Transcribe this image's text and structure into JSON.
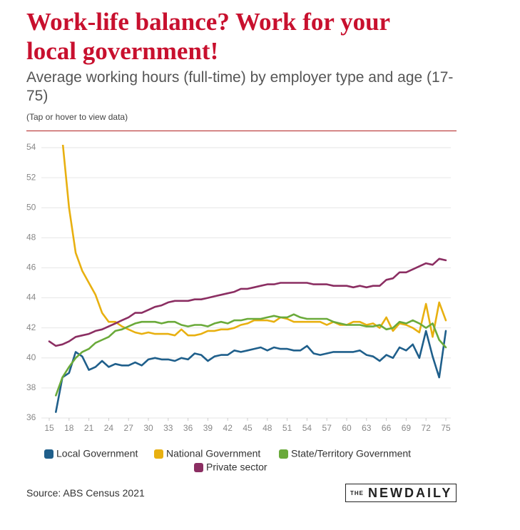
{
  "chart_data": {
    "type": "line",
    "title": "Work-life balance? Work for your local government!",
    "subtitle": "Average working hours (full-time) by employer type and age (17-75)",
    "note": "(Tap or hover to view data)",
    "source": "Source: ABS Census 2021",
    "logo": {
      "prefix": "THE",
      "name": "NEWDAILY"
    },
    "x": [
      15,
      16,
      17,
      18,
      19,
      20,
      21,
      22,
      23,
      24,
      25,
      26,
      27,
      28,
      29,
      30,
      31,
      32,
      33,
      34,
      35,
      36,
      37,
      38,
      39,
      40,
      41,
      42,
      43,
      44,
      45,
      46,
      47,
      48,
      49,
      50,
      51,
      52,
      53,
      54,
      55,
      56,
      57,
      58,
      59,
      60,
      61,
      62,
      63,
      64,
      65,
      66,
      67,
      68,
      69,
      70,
      71,
      72,
      73,
      74,
      75
    ],
    "series": [
      {
        "name": "Local Government",
        "color": "#1f5f8b",
        "values": [
          null,
          36.4,
          38.7,
          39.0,
          40.4,
          40.1,
          39.2,
          39.4,
          39.8,
          39.4,
          39.6,
          39.5,
          39.5,
          39.7,
          39.5,
          39.9,
          40.0,
          39.9,
          39.9,
          39.8,
          40.0,
          39.9,
          40.3,
          40.2,
          39.8,
          40.1,
          40.2,
          40.2,
          40.5,
          40.4,
          40.5,
          40.6,
          40.7,
          40.5,
          40.7,
          40.6,
          40.6,
          40.5,
          40.5,
          40.8,
          40.3,
          40.2,
          40.3,
          40.4,
          40.4,
          40.4,
          40.4,
          40.5,
          40.2,
          40.1,
          39.8,
          40.2,
          40.0,
          40.7,
          40.5,
          40.9,
          40.0,
          41.8,
          40.1,
          38.7,
          41.8
        ]
      },
      {
        "name": "National Government",
        "color": "#e8b010",
        "values": [
          null,
          null,
          54.5,
          50,
          47,
          45.8,
          45,
          44.2,
          43,
          42.4,
          42.4,
          42.1,
          41.9,
          41.7,
          41.6,
          41.7,
          41.6,
          41.6,
          41.6,
          41.5,
          41.9,
          41.5,
          41.5,
          41.6,
          41.8,
          41.8,
          41.9,
          41.9,
          42.0,
          42.2,
          42.3,
          42.5,
          42.5,
          42.5,
          42.4,
          42.7,
          42.6,
          42.4,
          42.4,
          42.4,
          42.4,
          42.4,
          42.2,
          42.4,
          42.2,
          42.2,
          42.4,
          42.4,
          42.2,
          42.3,
          42.0,
          42.7,
          41.8,
          42.3,
          42.2,
          42.0,
          41.7,
          43.6,
          41.4,
          43.7,
          42.5
        ]
      },
      {
        "name": "State/Territory Government",
        "color": "#6aaa3a",
        "values": [
          null,
          37.5,
          38.7,
          39.4,
          40.0,
          40.4,
          40.6,
          41.0,
          41.2,
          41.4,
          41.8,
          41.9,
          42.1,
          42.3,
          42.4,
          42.4,
          42.4,
          42.3,
          42.4,
          42.4,
          42.2,
          42.1,
          42.2,
          42.2,
          42.1,
          42.3,
          42.4,
          42.3,
          42.5,
          42.5,
          42.6,
          42.6,
          42.6,
          42.7,
          42.8,
          42.7,
          42.7,
          42.9,
          42.7,
          42.6,
          42.6,
          42.6,
          42.6,
          42.4,
          42.3,
          42.2,
          42.2,
          42.2,
          42.1,
          42.1,
          42.2,
          41.9,
          42.0,
          42.4,
          42.3,
          42.5,
          42.3,
          42.0,
          42.3,
          41.2,
          40.7
        ]
      },
      {
        "name": "Private sector",
        "color": "#8b2e62",
        "values": [
          41.1,
          40.8,
          40.9,
          41.1,
          41.4,
          41.5,
          41.6,
          41.8,
          41.9,
          42.1,
          42.3,
          42.5,
          42.7,
          43.0,
          43.0,
          43.2,
          43.4,
          43.5,
          43.7,
          43.8,
          43.8,
          43.8,
          43.9,
          43.9,
          44.0,
          44.1,
          44.2,
          44.3,
          44.4,
          44.6,
          44.6,
          44.7,
          44.8,
          44.9,
          44.9,
          45.0,
          45.0,
          45.0,
          45.0,
          45.0,
          44.9,
          44.9,
          44.9,
          44.8,
          44.8,
          44.8,
          44.7,
          44.8,
          44.7,
          44.8,
          44.8,
          45.2,
          45.3,
          45.7,
          45.7,
          45.9,
          46.1,
          46.3,
          46.2,
          46.6,
          46.5
        ]
      }
    ],
    "xlim": [
      15,
      75
    ],
    "xticks": [
      15,
      18,
      21,
      24,
      27,
      30,
      33,
      36,
      39,
      42,
      45,
      48,
      51,
      54,
      57,
      60,
      63,
      66,
      69,
      72,
      75
    ],
    "ylim": [
      36,
      54
    ],
    "yticks": [
      36,
      38,
      40,
      42,
      44,
      46,
      48,
      50,
      52,
      54
    ],
    "grid": true,
    "legend": "bottom"
  }
}
